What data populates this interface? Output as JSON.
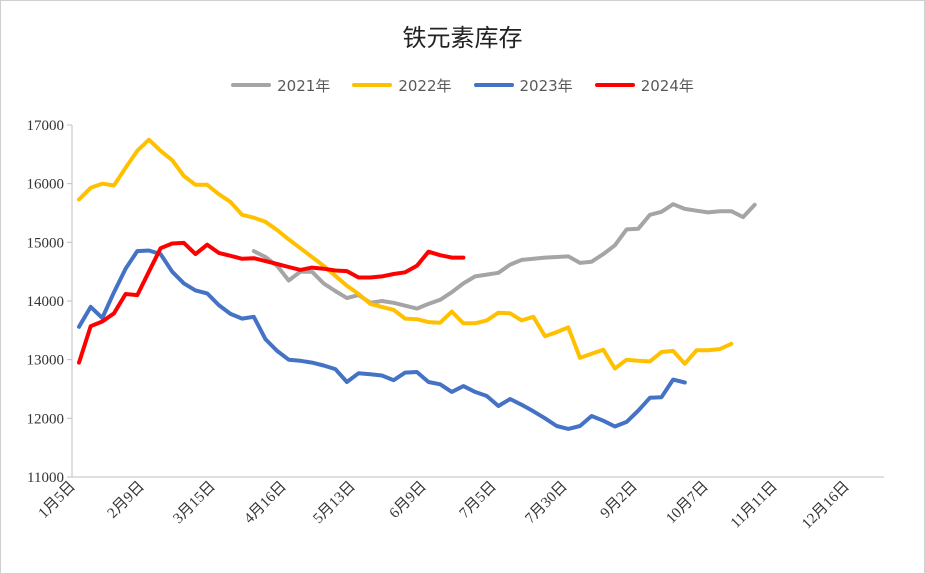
{
  "chart_data": {
    "type": "line",
    "title": "铁元素库存",
    "xlabel": "",
    "ylabel": "",
    "ylim": [
      11000,
      17000
    ],
    "yticks": [
      11000,
      12000,
      13000,
      14000,
      15000,
      16000,
      17000
    ],
    "grid": false,
    "legend_position": "top",
    "x_tick_labels": [
      "1月5日",
      "2月9日",
      "3月15日",
      "4月16日",
      "5月13日",
      "6月9日",
      "7月5日",
      "7月30日",
      "9月2日",
      "10月7日",
      "11月11日",
      "12月16日"
    ],
    "series": [
      {
        "name": "2021年",
        "color": "#a5a5a5",
        "start_index": 15,
        "values": [
          14850,
          14750,
          14600,
          14350,
          14500,
          14500,
          14300,
          14170,
          14050,
          14100,
          13970,
          14000,
          13970,
          13920,
          13870,
          13950,
          14020,
          14150,
          14300,
          14420,
          14450,
          14480,
          14620,
          14700,
          14720,
          14740,
          14750,
          14760,
          14650,
          14670,
          14800,
          14950,
          15220,
          15230,
          15470,
          15520,
          15650,
          15570,
          15540,
          15510,
          15530,
          15530,
          15430,
          15640
        ]
      },
      {
        "name": "2022年",
        "color": "#ffc000",
        "start_index": 0,
        "values": [
          15730,
          15930,
          16000,
          15970,
          16270,
          16560,
          16750,
          16560,
          16400,
          16130,
          15980,
          15980,
          15820,
          15690,
          15470,
          15420,
          15350,
          15210,
          15050,
          14900,
          14750,
          14600,
          14430,
          14260,
          14120,
          13950,
          13900,
          13850,
          13700,
          13690,
          13640,
          13630,
          13820,
          13620,
          13620,
          13670,
          13800,
          13790,
          13670,
          13730,
          13400,
          13470,
          13550,
          13030,
          13100,
          13170,
          12850,
          13000,
          12980,
          12970,
          13130,
          13150,
          12930,
          13160,
          13160,
          13180,
          13270
        ]
      },
      {
        "name": "2023年",
        "color": "#4472c4",
        "start_index": 0,
        "values": [
          13560,
          13900,
          13710,
          14150,
          14550,
          14850,
          14860,
          14800,
          14500,
          14300,
          14180,
          14130,
          13930,
          13780,
          13700,
          13730,
          13350,
          13150,
          13000,
          12980,
          12950,
          12900,
          12840,
          12620,
          12770,
          12750,
          12730,
          12650,
          12780,
          12790,
          12620,
          12580,
          12450,
          12550,
          12450,
          12380,
          12210,
          12330,
          12230,
          12120,
          12000,
          11870,
          11820,
          11870,
          12040,
          11960,
          11860,
          11940,
          12130,
          12350,
          12360,
          12660,
          12610
        ]
      },
      {
        "name": "2024年",
        "color": "#ff0000",
        "start_index": 0,
        "values": [
          12950,
          13570,
          13650,
          13790,
          14120,
          14100,
          14500,
          14900,
          14980,
          14990,
          14800,
          14960,
          14820,
          14770,
          14720,
          14730,
          14680,
          14630,
          14580,
          14530,
          14570,
          14550,
          14520,
          14510,
          14400,
          14400,
          14420,
          14460,
          14490,
          14600,
          14840,
          14780,
          14740,
          14740
        ]
      }
    ]
  }
}
